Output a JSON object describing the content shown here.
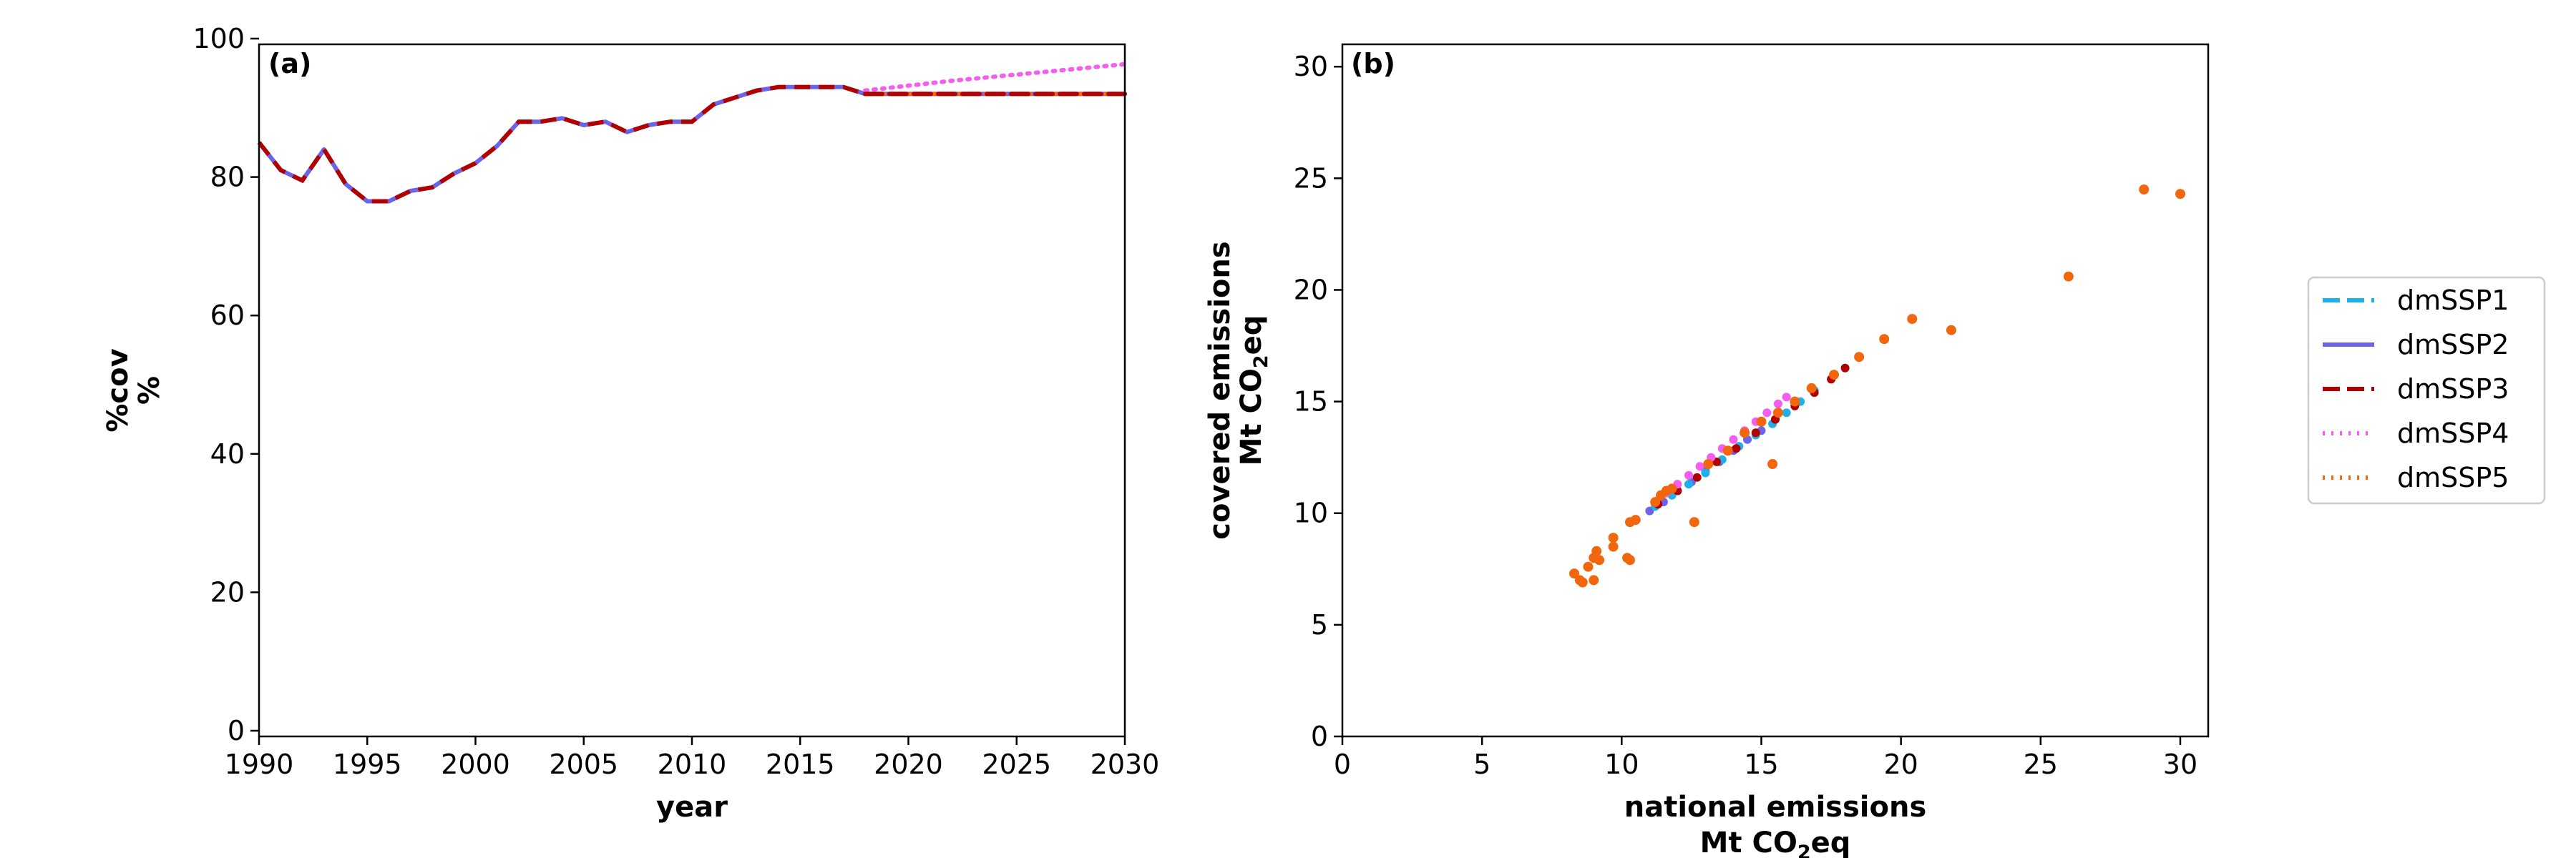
{
  "chart_data": [
    {
      "type": "line",
      "panel_label": "(a)",
      "xlabel": "year",
      "ylabel": [
        "%cov",
        "%"
      ],
      "xlim": [
        1990,
        2030
      ],
      "ylim": [
        0,
        100
      ],
      "xticks": [
        1990,
        1995,
        2000,
        2005,
        2010,
        2015,
        2020,
        2025,
        2030
      ],
      "yticks": [
        0,
        20,
        40,
        60,
        80,
        100
      ],
      "history": {
        "x": [
          1990,
          1991,
          1992,
          1993,
          1994,
          1995,
          1996,
          1997,
          1998,
          1999,
          2000,
          2001,
          2002,
          2003,
          2004,
          2005,
          2006,
          2007,
          2008,
          2009,
          2010,
          2011,
          2012,
          2013,
          2014,
          2015,
          2016,
          2017,
          2018
        ],
        "y": [
          85,
          81,
          79.5,
          84,
          79,
          76.5,
          76.5,
          78,
          78.5,
          80.5,
          82,
          84.5,
          88,
          88,
          88.5,
          87.5,
          88,
          86.5,
          87.5,
          88,
          88,
          90.5,
          91.5,
          92.5,
          93,
          93,
          93,
          93,
          92
        ]
      },
      "series": [
        {
          "name": "dmSSP1",
          "x": [
            2018,
            2030
          ],
          "y": [
            92,
            92
          ]
        },
        {
          "name": "dmSSP2",
          "x": [
            2018,
            2030
          ],
          "y": [
            92,
            92
          ]
        },
        {
          "name": "dmSSP3",
          "x": [
            2018,
            2030
          ],
          "y": [
            92,
            92
          ]
        },
        {
          "name": "dmSSP4",
          "x": [
            2018,
            2020,
            2022,
            2024,
            2026,
            2028,
            2030
          ],
          "y": [
            92.5,
            93.2,
            93.9,
            94.5,
            95.1,
            95.7,
            96.3
          ]
        },
        {
          "name": "dmSSP5",
          "x": [
            2018,
            2030
          ],
          "y": [
            92,
            92
          ]
        }
      ]
    },
    {
      "type": "scatter",
      "panel_label": "(b)",
      "xlabel": [
        "national emissions",
        "Mt CO",
        "2",
        "eq"
      ],
      "ylabel": [
        "covered emissions",
        "Mt CO",
        "2",
        "eq"
      ],
      "xlim": [
        0,
        31
      ],
      "ylim": [
        0,
        31
      ],
      "xticks": [
        0,
        5,
        10,
        15,
        20,
        25,
        30
      ],
      "yticks": [
        0,
        5,
        10,
        15,
        20,
        25,
        30
      ],
      "series": [
        {
          "name": "dmSSP1",
          "points": [
            [
              11.2,
              10.3
            ],
            [
              11.8,
              10.8
            ],
            [
              12.4,
              11.3
            ],
            [
              13.0,
              11.8
            ],
            [
              13.6,
              12.4
            ],
            [
              14.2,
              13.0
            ],
            [
              14.8,
              13.5
            ],
            [
              15.4,
              14.0
            ],
            [
              15.9,
              14.5
            ],
            [
              16.4,
              15.0
            ],
            [
              16.9,
              15.5
            ]
          ]
        },
        {
          "name": "dmSSP2",
          "points": [
            [
              11.0,
              10.1
            ],
            [
              11.5,
              10.5
            ],
            [
              12.0,
              11.0
            ],
            [
              12.5,
              11.4
            ],
            [
              13.0,
              11.9
            ],
            [
              13.5,
              12.3
            ],
            [
              14.0,
              12.8
            ],
            [
              14.5,
              13.3
            ],
            [
              15.0,
              13.7
            ],
            [
              15.5,
              14.2
            ]
          ]
        },
        {
          "name": "dmSSP3",
          "points": [
            [
              11.3,
              10.4
            ],
            [
              12.0,
              11.0
            ],
            [
              12.7,
              11.6
            ],
            [
              13.4,
              12.3
            ],
            [
              14.1,
              12.9
            ],
            [
              14.8,
              13.6
            ],
            [
              15.5,
              14.2
            ],
            [
              16.2,
              14.8
            ],
            [
              16.9,
              15.4
            ],
            [
              17.5,
              16.0
            ],
            [
              18.0,
              16.5
            ]
          ]
        },
        {
          "name": "dmSSP4",
          "points": [
            [
              11.6,
              10.9
            ],
            [
              12.0,
              11.3
            ],
            [
              12.4,
              11.7
            ],
            [
              12.8,
              12.1
            ],
            [
              13.2,
              12.5
            ],
            [
              13.6,
              12.9
            ],
            [
              14.0,
              13.3
            ],
            [
              14.4,
              13.7
            ],
            [
              14.8,
              14.1
            ],
            [
              15.2,
              14.5
            ],
            [
              15.6,
              14.9
            ],
            [
              15.9,
              15.2
            ]
          ]
        },
        {
          "name": "dmSSP5",
          "points": [
            [
              8.3,
              7.3
            ],
            [
              8.5,
              7.0
            ],
            [
              8.6,
              6.9
            ],
            [
              8.8,
              7.6
            ],
            [
              9.0,
              7.0
            ],
            [
              9.0,
              8.0
            ],
            [
              9.1,
              8.3
            ],
            [
              9.2,
              7.9
            ],
            [
              9.7,
              8.5
            ],
            [
              9.7,
              8.9
            ],
            [
              10.2,
              8.0
            ],
            [
              10.3,
              7.9
            ],
            [
              10.3,
              9.6
            ],
            [
              10.5,
              9.7
            ],
            [
              11.2,
              10.5
            ],
            [
              11.4,
              10.8
            ],
            [
              11.6,
              11.0
            ],
            [
              11.8,
              11.1
            ],
            [
              12.6,
              9.6
            ],
            [
              13.1,
              12.2
            ],
            [
              13.8,
              12.8
            ],
            [
              14.4,
              13.6
            ],
            [
              15.0,
              14.1
            ],
            [
              15.4,
              12.2
            ],
            [
              15.6,
              14.5
            ],
            [
              16.2,
              15.0
            ],
            [
              16.8,
              15.6
            ],
            [
              17.6,
              16.2
            ],
            [
              18.5,
              17.0
            ],
            [
              19.4,
              17.8
            ],
            [
              20.4,
              18.7
            ],
            [
              21.8,
              18.2
            ],
            [
              26.0,
              20.6
            ],
            [
              28.7,
              24.5
            ],
            [
              30.0,
              24.3
            ]
          ]
        }
      ]
    }
  ],
  "legend": {
    "placement": "right",
    "items": [
      {
        "name": "dmSSP1",
        "style": "dashed",
        "color": "#1EB0E8"
      },
      {
        "name": "dmSSP2",
        "style": "solid",
        "color": "#6B63E8"
      },
      {
        "name": "dmSSP3",
        "style": "dashed",
        "color": "#B00000"
      },
      {
        "name": "dmSSP4",
        "style": "dotted",
        "color": "#F55CF0"
      },
      {
        "name": "dmSSP5",
        "style": "dotted",
        "color": "#F2660E"
      }
    ]
  }
}
